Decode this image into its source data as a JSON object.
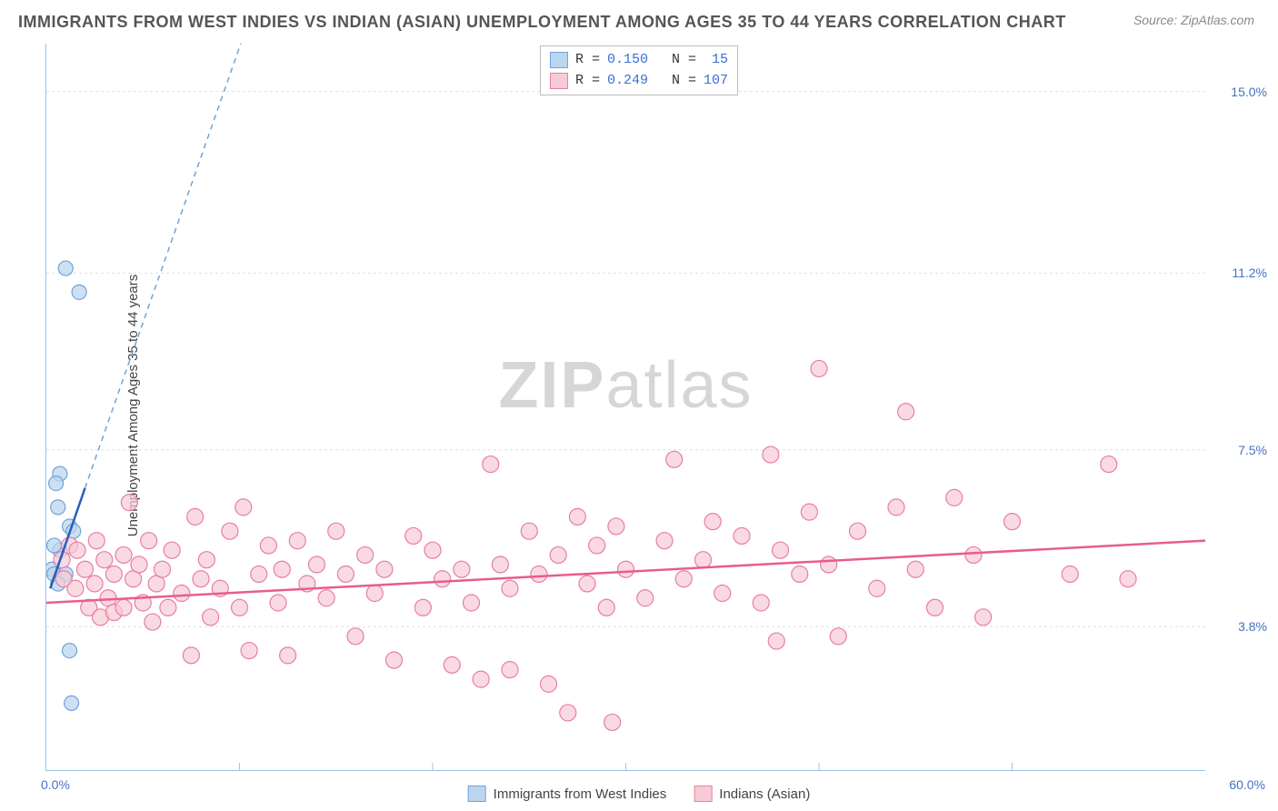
{
  "title": "IMMIGRANTS FROM WEST INDIES VS INDIAN (ASIAN) UNEMPLOYMENT AMONG AGES 35 TO 44 YEARS CORRELATION CHART",
  "source": "Source: ZipAtlas.com",
  "watermark_zip": "ZIP",
  "watermark_atlas": "atlas",
  "y_axis_label": "Unemployment Among Ages 35 to 44 years",
  "chart": {
    "type": "scatter",
    "x_min": 0,
    "x_max": 60,
    "y_min": 0.8,
    "y_max": 16,
    "background_color": "#ffffff",
    "grid_color": "#e0e0e0",
    "axis_color": "#9dc3e6",
    "y_ticks": [
      {
        "v": 3.8,
        "label": "3.8%"
      },
      {
        "v": 7.5,
        "label": "7.5%"
      },
      {
        "v": 11.2,
        "label": "11.2%"
      },
      {
        "v": 15.0,
        "label": "15.0%"
      }
    ],
    "x_ticks": [
      {
        "v": 0,
        "label": "0.0%"
      },
      {
        "v": 60,
        "label": "60.0%"
      }
    ],
    "series": [
      {
        "name": "Immigrants from West Indies",
        "marker_fill": "#bcd5ee",
        "marker_stroke": "#6fa3d8",
        "marker_radius": 8,
        "marker_opacity": 0.75,
        "R": "0.150",
        "N": "15",
        "trend_color": "#2a5cbf",
        "trend_dash_color": "#6fa3d8",
        "trend_start": {
          "x": 0.2,
          "y": 4.6
        },
        "trend_solid_end": {
          "x": 2.0,
          "y": 6.7
        },
        "trend_dash_end": {
          "x": 17.0,
          "y": 24.0
        },
        "points": [
          {
            "x": 1.0,
            "y": 11.3
          },
          {
            "x": 1.7,
            "y": 10.8
          },
          {
            "x": 0.7,
            "y": 7.0
          },
          {
            "x": 0.5,
            "y": 6.8
          },
          {
            "x": 0.6,
            "y": 6.3
          },
          {
            "x": 1.2,
            "y": 5.9
          },
          {
            "x": 1.4,
            "y": 5.8
          },
          {
            "x": 0.7,
            "y": 5.4
          },
          {
            "x": 0.3,
            "y": 5.0
          },
          {
            "x": 0.4,
            "y": 4.9
          },
          {
            "x": 1.0,
            "y": 4.9
          },
          {
            "x": 0.6,
            "y": 4.7
          },
          {
            "x": 1.2,
            "y": 3.3
          },
          {
            "x": 1.3,
            "y": 2.2
          },
          {
            "x": 0.4,
            "y": 5.5
          }
        ]
      },
      {
        "name": "Indians (Asian)",
        "marker_fill": "#f7cbd6",
        "marker_stroke": "#e87ea0",
        "marker_radius": 9,
        "marker_opacity": 0.7,
        "R": "0.249",
        "N": "107",
        "trend_color": "#e85c8f",
        "trend_start": {
          "x": 0,
          "y": 4.3
        },
        "trend_solid_end": {
          "x": 60,
          "y": 5.6
        },
        "points": [
          {
            "x": 0.8,
            "y": 5.2
          },
          {
            "x": 0.9,
            "y": 4.8
          },
          {
            "x": 1.2,
            "y": 5.5
          },
          {
            "x": 1.5,
            "y": 4.6
          },
          {
            "x": 1.6,
            "y": 5.4
          },
          {
            "x": 2.0,
            "y": 5.0
          },
          {
            "x": 2.2,
            "y": 4.2
          },
          {
            "x": 2.5,
            "y": 4.7
          },
          {
            "x": 2.6,
            "y": 5.6
          },
          {
            "x": 2.8,
            "y": 4.0
          },
          {
            "x": 3.0,
            "y": 5.2
          },
          {
            "x": 3.2,
            "y": 4.4
          },
          {
            "x": 3.5,
            "y": 4.9
          },
          {
            "x": 3.5,
            "y": 4.1
          },
          {
            "x": 4.0,
            "y": 5.3
          },
          {
            "x": 4.0,
            "y": 4.2
          },
          {
            "x": 4.3,
            "y": 6.4
          },
          {
            "x": 4.5,
            "y": 4.8
          },
          {
            "x": 4.8,
            "y": 5.1
          },
          {
            "x": 5.0,
            "y": 4.3
          },
          {
            "x": 5.3,
            "y": 5.6
          },
          {
            "x": 5.5,
            "y": 3.9
          },
          {
            "x": 5.7,
            "y": 4.7
          },
          {
            "x": 6.0,
            "y": 5.0
          },
          {
            "x": 6.3,
            "y": 4.2
          },
          {
            "x": 6.5,
            "y": 5.4
          },
          {
            "x": 7.0,
            "y": 4.5
          },
          {
            "x": 7.5,
            "y": 3.2
          },
          {
            "x": 7.7,
            "y": 6.1
          },
          {
            "x": 8.0,
            "y": 4.8
          },
          {
            "x": 8.3,
            "y": 5.2
          },
          {
            "x": 8.5,
            "y": 4.0
          },
          {
            "x": 9.0,
            "y": 4.6
          },
          {
            "x": 9.5,
            "y": 5.8
          },
          {
            "x": 10.0,
            "y": 4.2
          },
          {
            "x": 10.2,
            "y": 6.3
          },
          {
            "x": 10.5,
            "y": 3.3
          },
          {
            "x": 11.0,
            "y": 4.9
          },
          {
            "x": 11.5,
            "y": 5.5
          },
          {
            "x": 12.0,
            "y": 4.3
          },
          {
            "x": 12.2,
            "y": 5.0
          },
          {
            "x": 12.5,
            "y": 3.2
          },
          {
            "x": 13.0,
            "y": 5.6
          },
          {
            "x": 13.5,
            "y": 4.7
          },
          {
            "x": 14.0,
            "y": 5.1
          },
          {
            "x": 14.5,
            "y": 4.4
          },
          {
            "x": 15.0,
            "y": 5.8
          },
          {
            "x": 15.5,
            "y": 4.9
          },
          {
            "x": 16.0,
            "y": 3.6
          },
          {
            "x": 16.5,
            "y": 5.3
          },
          {
            "x": 17.0,
            "y": 4.5
          },
          {
            "x": 17.5,
            "y": 5.0
          },
          {
            "x": 18.0,
            "y": 3.1
          },
          {
            "x": 19.0,
            "y": 5.7
          },
          {
            "x": 19.5,
            "y": 4.2
          },
          {
            "x": 20.0,
            "y": 5.4
          },
          {
            "x": 20.5,
            "y": 4.8
          },
          {
            "x": 21.0,
            "y": 3.0
          },
          {
            "x": 21.5,
            "y": 5.0
          },
          {
            "x": 22.0,
            "y": 4.3
          },
          {
            "x": 22.5,
            "y": 2.7
          },
          {
            "x": 23.0,
            "y": 7.2
          },
          {
            "x": 23.5,
            "y": 5.1
          },
          {
            "x": 24.0,
            "y": 4.6
          },
          {
            "x": 24.0,
            "y": 2.9
          },
          {
            "x": 25.0,
            "y": 5.8
          },
          {
            "x": 25.5,
            "y": 4.9
          },
          {
            "x": 26.0,
            "y": 2.6
          },
          {
            "x": 26.5,
            "y": 5.3
          },
          {
            "x": 27.0,
            "y": 2.0
          },
          {
            "x": 27.5,
            "y": 6.1
          },
          {
            "x": 28.0,
            "y": 4.7
          },
          {
            "x": 28.5,
            "y": 5.5
          },
          {
            "x": 29.0,
            "y": 4.2
          },
          {
            "x": 29.3,
            "y": 1.8
          },
          {
            "x": 29.5,
            "y": 5.9
          },
          {
            "x": 30.0,
            "y": 5.0
          },
          {
            "x": 31.0,
            "y": 4.4
          },
          {
            "x": 32.0,
            "y": 5.6
          },
          {
            "x": 32.5,
            "y": 7.3
          },
          {
            "x": 33.0,
            "y": 4.8
          },
          {
            "x": 34.0,
            "y": 5.2
          },
          {
            "x": 34.5,
            "y": 6.0
          },
          {
            "x": 35.0,
            "y": 4.5
          },
          {
            "x": 36.0,
            "y": 5.7
          },
          {
            "x": 37.0,
            "y": 4.3
          },
          {
            "x": 37.5,
            "y": 7.4
          },
          {
            "x": 37.8,
            "y": 3.5
          },
          {
            "x": 38.0,
            "y": 5.4
          },
          {
            "x": 39.0,
            "y": 4.9
          },
          {
            "x": 39.5,
            "y": 6.2
          },
          {
            "x": 40.0,
            "y": 9.2
          },
          {
            "x": 40.5,
            "y": 5.1
          },
          {
            "x": 41.0,
            "y": 3.6
          },
          {
            "x": 42.0,
            "y": 5.8
          },
          {
            "x": 43.0,
            "y": 4.6
          },
          {
            "x": 44.0,
            "y": 6.3
          },
          {
            "x": 44.5,
            "y": 8.3
          },
          {
            "x": 45.0,
            "y": 5.0
          },
          {
            "x": 46.0,
            "y": 4.2
          },
          {
            "x": 47.0,
            "y": 6.5
          },
          {
            "x": 48.0,
            "y": 5.3
          },
          {
            "x": 48.5,
            "y": 4.0
          },
          {
            "x": 50.0,
            "y": 6.0
          },
          {
            "x": 53.0,
            "y": 4.9
          },
          {
            "x": 55.0,
            "y": 7.2
          },
          {
            "x": 56.0,
            "y": 4.8
          }
        ]
      }
    ]
  },
  "legend_bottom": [
    {
      "label": "Immigrants from West Indies",
      "fill": "#bcd5ee",
      "stroke": "#6fa3d8"
    },
    {
      "label": "Indians (Asian)",
      "fill": "#f7cbd6",
      "stroke": "#e87ea0"
    }
  ]
}
